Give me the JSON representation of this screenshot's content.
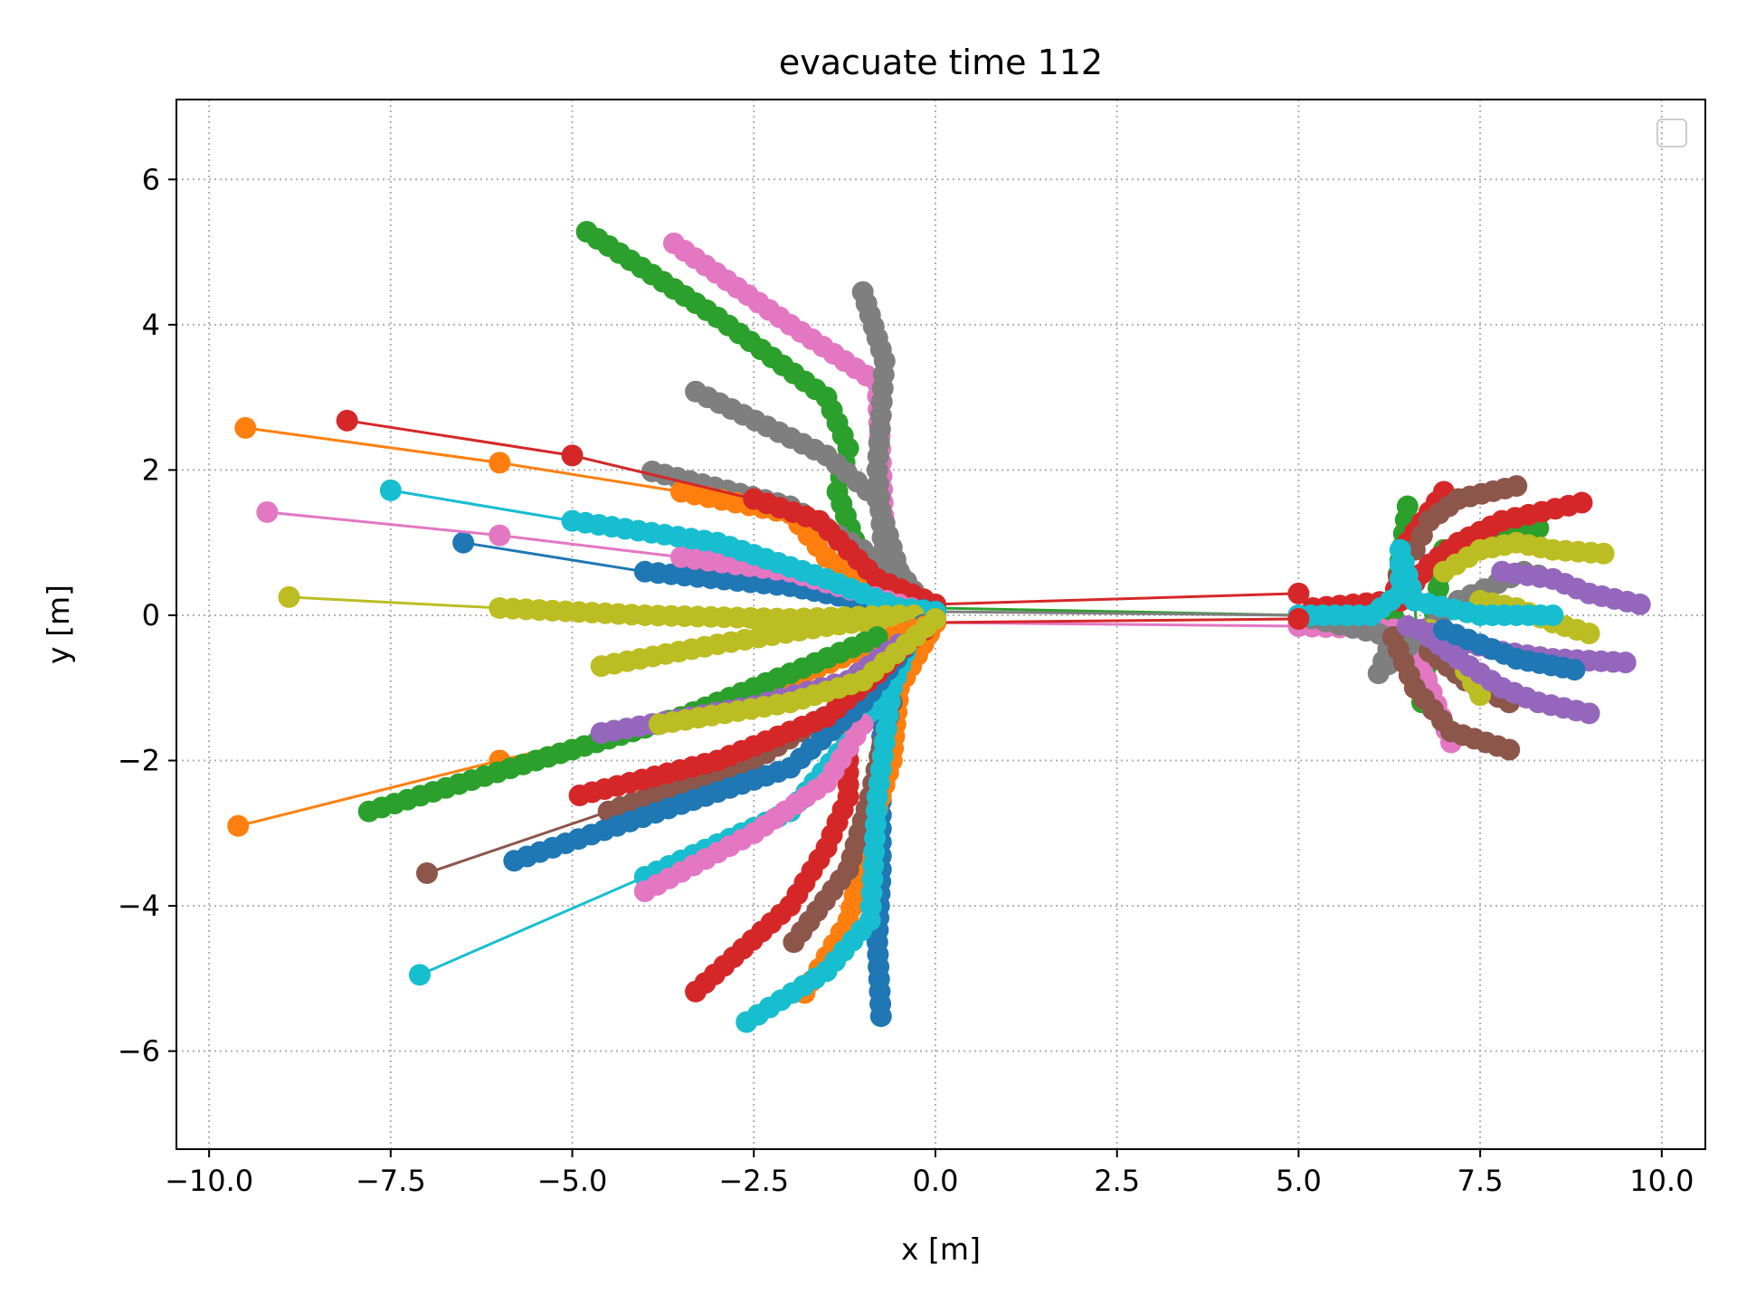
{
  "chart_data": {
    "type": "line",
    "title": "evacuate time 112",
    "xlabel": "x [m]",
    "ylabel": "y [m]",
    "xlim": [
      -10.45,
      10.6
    ],
    "ylim": [
      -7.35,
      7.1
    ],
    "xticks": [
      -10,
      -7.5,
      -5,
      -2.5,
      0,
      2.5,
      5,
      7.5,
      10
    ],
    "xtick_labels": [
      "−10.0",
      "−7.5",
      "−5.0",
      "−2.5",
      "0.0",
      "2.5",
      "5.0",
      "7.5",
      "10.0"
    ],
    "yticks": [
      -6,
      -4,
      -2,
      0,
      2,
      4,
      6
    ],
    "ytick_labels": [
      "−6",
      "−4",
      "−2",
      "0",
      "2",
      "4",
      "6"
    ],
    "grid": true,
    "legend": "top-right (empty)",
    "colors": [
      "#1f77b4",
      "#ff7f0e",
      "#2ca02c",
      "#d62728",
      "#9467bd",
      "#8c564b",
      "#e377c2",
      "#7f7f7f",
      "#bcbd22",
      "#17becf"
    ],
    "series": [
      {
        "color": "#2ca02c",
        "values": [
          [
            -4.8,
            5.28
          ],
          [
            -3.0,
            4.1
          ],
          [
            -1.5,
            3.0
          ],
          [
            -1.2,
            2.3
          ],
          [
            -1.35,
            1.7
          ],
          [
            -1.0,
            0.7
          ],
          [
            -0.5,
            0.25
          ],
          [
            0,
            0.1
          ],
          [
            5.0,
            0.0
          ],
          [
            6.3,
            0.0
          ],
          [
            6.5,
            1.5
          ],
          [
            6.7,
            -1.2
          ],
          [
            7.0,
            0.9
          ],
          [
            8.3,
            1.2
          ]
        ]
      },
      {
        "color": "#e377c2",
        "values": [
          [
            -3.6,
            5.12
          ],
          [
            -2.0,
            4.0
          ],
          [
            -0.8,
            3.2
          ],
          [
            -0.7,
            1.0
          ],
          [
            -0.3,
            0.2
          ],
          [
            0,
            -0.1
          ],
          [
            5.0,
            -0.15
          ],
          [
            6.5,
            -0.2
          ],
          [
            7.1,
            -1.75
          ]
        ]
      },
      {
        "color": "#7f7f7f",
        "values": [
          [
            -1.0,
            4.45
          ],
          [
            -0.7,
            3.5
          ],
          [
            -0.8,
            2.0
          ],
          [
            -0.7,
            0.7
          ],
          [
            -0.4,
            0.2
          ],
          [
            0,
            0.05
          ],
          [
            5.0,
            0.0
          ],
          [
            6.3,
            -0.3
          ],
          [
            6.1,
            -0.8
          ],
          [
            7.2,
            0.2
          ],
          [
            8.1,
            0.6
          ],
          [
            8.5,
            0.5
          ]
        ]
      },
      {
        "color": "#7f7f7f",
        "values": [
          [
            -3.3,
            3.08
          ],
          [
            -1.5,
            2.2
          ],
          [
            -0.8,
            1.6
          ],
          [
            -0.5,
            0.6
          ],
          [
            -0.2,
            0.2
          ]
        ]
      },
      {
        "color": "#7f7f7f",
        "values": [
          [
            -3.9,
            1.98
          ],
          [
            -2.0,
            1.5
          ],
          [
            -1.0,
            0.9
          ],
          [
            -0.4,
            0.3
          ]
        ]
      },
      {
        "color": "#ff7f0e",
        "values": [
          [
            -9.5,
            2.58
          ],
          [
            -6.0,
            2.1
          ],
          [
            -3.5,
            1.7
          ],
          [
            -2.0,
            1.4
          ],
          [
            -1.5,
            0.8
          ],
          [
            -0.5,
            0.1
          ],
          [
            0,
            0.05
          ]
        ]
      },
      {
        "color": "#d62728",
        "values": [
          [
            -8.1,
            2.68
          ],
          [
            -5.0,
            2.2
          ],
          [
            -2.5,
            1.6
          ],
          [
            -1.6,
            1.3
          ],
          [
            -0.8,
            0.5
          ],
          [
            0,
            0.15
          ],
          [
            5.0,
            0.3
          ]
        ]
      },
      {
        "color": "#d62728",
        "values": [
          [
            7.0,
            1.7
          ],
          [
            6.5,
            1.0
          ],
          [
            6.3,
            0.2
          ],
          [
            5.2,
            0.1
          ]
        ]
      },
      {
        "color": "#d62728",
        "values": [
          [
            8.9,
            1.55
          ],
          [
            7.8,
            1.3
          ],
          [
            7.2,
            1.0
          ],
          [
            6.8,
            0.7
          ],
          [
            6.4,
            0.2
          ]
        ]
      },
      {
        "color": "#8c564b",
        "values": [
          [
            8.0,
            1.78
          ],
          [
            7.2,
            1.6
          ],
          [
            6.8,
            1.3
          ],
          [
            6.6,
            0.9
          ]
        ]
      },
      {
        "color": "#8c564b",
        "values": [
          [
            7.9,
            -1.85
          ],
          [
            7.1,
            -1.6
          ],
          [
            6.6,
            -1.0
          ],
          [
            6.3,
            -0.3
          ]
        ]
      },
      {
        "color": "#8c564b",
        "values": [
          [
            7.9,
            -1.2
          ],
          [
            7.3,
            -0.9
          ],
          [
            6.8,
            -0.5
          ]
        ]
      },
      {
        "color": "#bcbd22",
        "values": [
          [
            9.2,
            0.85
          ],
          [
            8.5,
            0.9
          ],
          [
            8.0,
            1.0
          ],
          [
            7.5,
            0.9
          ],
          [
            7.0,
            0.6
          ]
        ]
      },
      {
        "color": "#bcbd22",
        "values": [
          [
            9.0,
            -0.25
          ],
          [
            8.5,
            -0.1
          ],
          [
            8.0,
            0.1
          ],
          [
            7.5,
            0.2
          ]
        ]
      },
      {
        "color": "#bcbd22",
        "values": [
          [
            7.5,
            -1.1
          ],
          [
            7.2,
            -0.6
          ],
          [
            6.8,
            -0.2
          ]
        ]
      },
      {
        "color": "#9467bd",
        "values": [
          [
            9.7,
            0.15
          ],
          [
            9.0,
            0.3
          ],
          [
            8.5,
            0.5
          ],
          [
            7.8,
            0.6
          ]
        ]
      },
      {
        "color": "#9467bd",
        "values": [
          [
            9.5,
            -0.65
          ],
          [
            8.5,
            -0.6
          ],
          [
            7.8,
            -0.5
          ],
          [
            7.0,
            -0.3
          ],
          [
            6.5,
            -0.15
          ]
        ]
      },
      {
        "color": "#9467bd",
        "values": [
          [
            9.0,
            -1.35
          ],
          [
            8.3,
            -1.2
          ],
          [
            7.8,
            -1.0
          ],
          [
            7.2,
            -0.6
          ],
          [
            6.8,
            -0.3
          ]
        ]
      },
      {
        "color": "#1f77b4",
        "values": [
          [
            8.8,
            -0.75
          ],
          [
            8.0,
            -0.6
          ],
          [
            7.5,
            -0.4
          ],
          [
            7.0,
            -0.2
          ]
        ]
      },
      {
        "color": "#1f77b4",
        "values": [
          [
            -6.5,
            1.0
          ],
          [
            -4.0,
            0.6
          ],
          [
            -2.0,
            0.4
          ],
          [
            -1.0,
            0.2
          ],
          [
            0,
            0.05
          ]
        ]
      },
      {
        "color": "#e377c2",
        "values": [
          [
            -9.2,
            1.42
          ],
          [
            -6.0,
            1.1
          ],
          [
            -3.5,
            0.8
          ],
          [
            -2.0,
            0.6
          ],
          [
            -1.0,
            0.3
          ],
          [
            0,
            0.0
          ]
        ]
      },
      {
        "color": "#17becf",
        "values": [
          [
            -7.5,
            1.72
          ],
          [
            -5.0,
            1.3
          ],
          [
            -3.0,
            1.0
          ],
          [
            -1.5,
            0.5
          ],
          [
            -0.5,
            0.1
          ],
          [
            0,
            0.05
          ]
        ]
      },
      {
        "color": "#bcbd22",
        "values": [
          [
            -8.9,
            0.25
          ],
          [
            -6.0,
            0.1
          ],
          [
            -4.0,
            0.0
          ],
          [
            -2.0,
            -0.05
          ],
          [
            -0.5,
            0.0
          ]
        ]
      },
      {
        "color": "#bcbd22",
        "values": [
          [
            -4.6,
            -0.7
          ],
          [
            -3.0,
            -0.4
          ],
          [
            -1.5,
            -0.15
          ],
          [
            -0.3,
            0.0
          ]
        ]
      },
      {
        "color": "#17becf",
        "values": [
          [
            5.0,
            0.0
          ],
          [
            6.0,
            0.0
          ],
          [
            6.4,
            0.3
          ],
          [
            6.4,
            0.9
          ],
          [
            6.6,
            0.2
          ],
          [
            7.5,
            0.0
          ],
          [
            8.5,
            0.0
          ]
        ]
      },
      {
        "color": "#1f77b4",
        "values": [
          [
            -0.75,
            -5.52
          ],
          [
            -0.8,
            -4.5
          ],
          [
            -0.75,
            -3.5
          ],
          [
            -0.75,
            -2.0
          ],
          [
            -0.7,
            -1.0
          ],
          [
            -0.5,
            -0.3
          ],
          [
            0,
            -0.05
          ]
        ]
      },
      {
        "color": "#ff7f0e",
        "values": [
          [
            -1.8,
            -5.2
          ],
          [
            -1.2,
            -4.2
          ],
          [
            -0.9,
            -3.0
          ],
          [
            -0.6,
            -2.0
          ],
          [
            -0.5,
            -1.0
          ],
          [
            0,
            -0.1
          ]
        ]
      },
      {
        "color": "#d62728",
        "values": [
          [
            -3.3,
            -5.18
          ],
          [
            -2.0,
            -4.0
          ],
          [
            -1.5,
            -3.2
          ],
          [
            -1.2,
            -2.5
          ],
          [
            -1.2,
            -1.5
          ],
          [
            -0.6,
            -0.5
          ],
          [
            0,
            -0.1
          ],
          [
            5.0,
            -0.05
          ]
        ]
      },
      {
        "color": "#8c564b",
        "values": [
          [
            -1.95,
            -4.5
          ],
          [
            -1.2,
            -3.5
          ],
          [
            -0.9,
            -2.5
          ],
          [
            -0.6,
            -1.2
          ]
        ]
      },
      {
        "color": "#17becf",
        "values": [
          [
            -2.6,
            -5.6
          ],
          [
            -1.5,
            -4.9
          ],
          [
            -0.9,
            -4.2
          ],
          [
            -0.8,
            -2.5
          ],
          [
            -0.6,
            -1.0
          ],
          [
            -0.3,
            -0.2
          ]
        ]
      },
      {
        "color": "#17becf",
        "values": [
          [
            -7.1,
            -4.95
          ],
          [
            -4.0,
            -3.6
          ],
          [
            -2.0,
            -2.7
          ],
          [
            -1.0,
            -1.5
          ],
          [
            -0.4,
            -0.4
          ]
        ]
      },
      {
        "color": "#e377c2",
        "values": [
          [
            -4.0,
            -3.8
          ],
          [
            -2.5,
            -3.0
          ],
          [
            -1.5,
            -2.3
          ],
          [
            -1.0,
            -1.5
          ]
        ]
      },
      {
        "color": "#8c564b",
        "values": [
          [
            -7.0,
            -3.55
          ],
          [
            -4.5,
            -2.7
          ],
          [
            -2.5,
            -2.0
          ],
          [
            -1.2,
            -1.2
          ],
          [
            -0.5,
            -0.3
          ]
        ]
      },
      {
        "color": "#1f77b4",
        "values": [
          [
            -5.8,
            -3.38
          ],
          [
            -3.5,
            -2.6
          ],
          [
            -2.0,
            -2.1
          ],
          [
            -1.0,
            -1.2
          ],
          [
            -0.3,
            -0.3
          ]
        ]
      },
      {
        "color": "#d62728",
        "values": [
          [
            -4.9,
            -2.48
          ],
          [
            -3.0,
            -2.0
          ],
          [
            -1.5,
            -1.4
          ],
          [
            -0.8,
            -0.8
          ],
          [
            -0.2,
            -0.2
          ]
        ]
      },
      {
        "color": "#ff7f0e",
        "values": [
          [
            -9.6,
            -2.9
          ],
          [
            -6.0,
            -2.0
          ],
          [
            -3.5,
            -1.4
          ],
          [
            -1.8,
            -0.8
          ],
          [
            -0.6,
            -0.3
          ],
          [
            0,
            -0.1
          ]
        ]
      },
      {
        "color": "#2ca02c",
        "values": [
          [
            -7.8,
            -2.7
          ],
          [
            -5.5,
            -2.0
          ],
          [
            -3.5,
            -1.4
          ],
          [
            -2.0,
            -0.8
          ],
          [
            -0.8,
            -0.3
          ]
        ]
      },
      {
        "color": "#9467bd",
        "values": [
          [
            -4.6,
            -1.62
          ],
          [
            -2.5,
            -1.25
          ],
          [
            -1.2,
            -0.9
          ],
          [
            -0.5,
            -0.4
          ]
        ]
      },
      {
        "color": "#bcbd22",
        "values": [
          [
            -3.8,
            -1.5
          ],
          [
            -2.0,
            -1.2
          ],
          [
            -1.0,
            -0.9
          ],
          [
            -0.4,
            -0.4
          ],
          [
            0,
            -0.05
          ]
        ]
      }
    ]
  }
}
